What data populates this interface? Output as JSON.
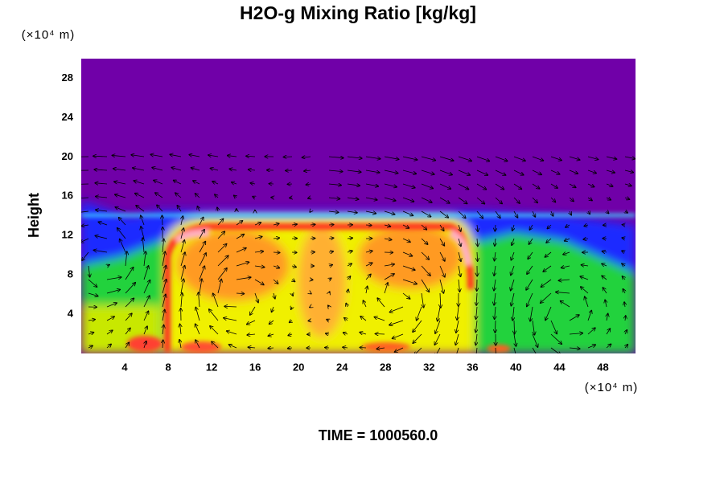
{
  "chart_data": {
    "type": "contour",
    "title": "H2O-g Mixing Ratio [kg/kg]",
    "ylabel": "Height",
    "xunit": "(×10⁴ m)",
    "yunit": "(×10⁴ m)",
    "annotation": "TIME = 1000560.0",
    "xlim": [
      0,
      51
    ],
    "ylim": [
      0,
      30
    ],
    "xticks": [
      4,
      8,
      12,
      16,
      20,
      24,
      28,
      32,
      36,
      40,
      44,
      48
    ],
    "yticks": [
      4,
      8,
      12,
      16,
      20,
      24,
      28
    ],
    "background_color": "#7000a8"
  }
}
